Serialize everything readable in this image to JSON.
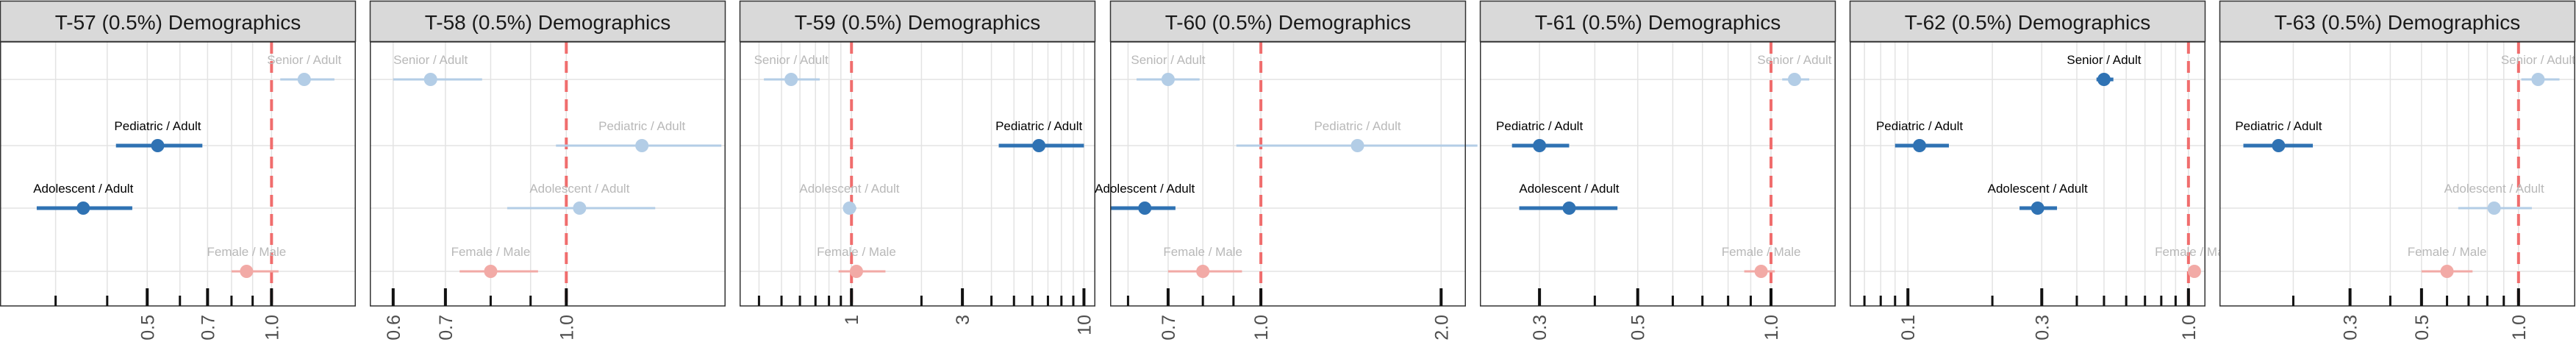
{
  "chart_data": [
    {
      "type": "scatter",
      "title": "T-57 (0.5%) Demographics",
      "x_scale": "log",
      "xlim": [
        0.22,
        1.6
      ],
      "x_ticks": [
        0.3,
        0.4,
        0.5,
        0.6,
        0.7,
        0.8,
        0.9,
        1.0
      ],
      "x_tick_labels": [
        "0.5",
        "0.7",
        "1.0"
      ],
      "reference_line": 1.0,
      "points": [
        {
          "label": "Senior / Adult",
          "value": 1.2,
          "ci": [
            1.05,
            1.42
          ],
          "significant": false,
          "group": "age"
        },
        {
          "label": "Pediatric / Adult",
          "value": 0.53,
          "ci": [
            0.42,
            0.68
          ],
          "significant": true,
          "group": "age"
        },
        {
          "label": "Adolescent / Adult",
          "value": 0.35,
          "ci": [
            0.27,
            0.46
          ],
          "significant": true,
          "group": "age"
        },
        {
          "label": "Female / Male",
          "value": 0.87,
          "ci": [
            0.8,
            1.04
          ],
          "significant": false,
          "group": "sex"
        }
      ]
    },
    {
      "type": "scatter",
      "title": "T-58 (0.5%) Demographics",
      "x_scale": "log",
      "xlim": [
        0.56,
        1.6
      ],
      "x_ticks": [
        0.6,
        0.7,
        0.8,
        0.9,
        1.0
      ],
      "x_tick_labels": [
        "0.6",
        "0.7",
        "1.0"
      ],
      "reference_line": 1.0,
      "points": [
        {
          "label": "Senior / Adult",
          "value": 0.67,
          "ci": [
            0.6,
            0.78
          ],
          "significant": false,
          "group": "age"
        },
        {
          "label": "Pediatric / Adult",
          "value": 1.25,
          "ci": [
            0.97,
            1.58
          ],
          "significant": false,
          "group": "age"
        },
        {
          "label": "Adolescent / Adult",
          "value": 1.04,
          "ci": [
            0.84,
            1.3
          ],
          "significant": false,
          "group": "age"
        },
        {
          "label": "Female / Male",
          "value": 0.8,
          "ci": [
            0.73,
            0.92
          ],
          "significant": false,
          "group": "sex"
        }
      ]
    },
    {
      "type": "scatter",
      "title": "T-59 (0.5%) Demographics",
      "x_scale": "log",
      "xlim": [
        0.33,
        11.2
      ],
      "x_ticks": [
        0.4,
        0.5,
        0.6,
        0.7,
        0.8,
        0.9,
        1,
        2,
        3,
        4,
        5,
        6,
        7,
        8,
        9,
        10
      ],
      "x_tick_labels": [
        "1",
        "3",
        "10"
      ],
      "reference_line": 1.0,
      "points": [
        {
          "label": "Senior / Adult",
          "value": 0.55,
          "ci": [
            0.42,
            0.73
          ],
          "significant": false,
          "group": "age"
        },
        {
          "label": "Pediatric / Adult",
          "value": 6.4,
          "ci": [
            4.3,
            10.0
          ],
          "significant": true,
          "group": "age"
        },
        {
          "label": "Adolescent / Adult",
          "value": 0.98,
          "ci": [
            0.92,
            1.05
          ],
          "significant": false,
          "group": "age"
        },
        {
          "label": "Female / Male",
          "value": 1.05,
          "ci": [
            0.88,
            1.4
          ],
          "significant": false,
          "group": "sex"
        }
      ]
    },
    {
      "type": "scatter",
      "title": "T-60 (0.5%) Demographics",
      "x_scale": "log",
      "xlim": [
        0.56,
        2.2
      ],
      "x_ticks": [
        0.6,
        0.7,
        0.8,
        0.9,
        1.0,
        2.0
      ],
      "x_tick_labels": [
        "0.7",
        "1.0",
        "2.0"
      ],
      "reference_line": 1.0,
      "points": [
        {
          "label": "Senior / Adult",
          "value": 0.7,
          "ci": [
            0.62,
            0.79
          ],
          "significant": false,
          "group": "age"
        },
        {
          "label": "Pediatric / Adult",
          "value": 1.45,
          "ci": [
            0.91,
            2.3
          ],
          "significant": false,
          "group": "age"
        },
        {
          "label": "Adolescent / Adult",
          "value": 0.64,
          "ci": [
            0.56,
            0.72
          ],
          "significant": true,
          "group": "age"
        },
        {
          "label": "Female / Male",
          "value": 0.8,
          "ci": [
            0.7,
            0.93
          ],
          "significant": false,
          "group": "sex"
        }
      ]
    },
    {
      "type": "scatter",
      "title": "T-61 (0.5%) Demographics",
      "x_scale": "log",
      "xlim": [
        0.22,
        1.4
      ],
      "x_ticks": [
        0.3,
        0.4,
        0.5,
        0.6,
        0.7,
        0.8,
        0.9,
        1.0
      ],
      "x_tick_labels": [
        "0.3",
        "0.5",
        "1.0"
      ],
      "reference_line": 1.0,
      "points": [
        {
          "label": "Senior / Adult",
          "value": 1.13,
          "ci": [
            1.06,
            1.22
          ],
          "significant": false,
          "group": "age"
        },
        {
          "label": "Pediatric / Adult",
          "value": 0.3,
          "ci": [
            0.26,
            0.35
          ],
          "significant": true,
          "group": "age"
        },
        {
          "label": "Adolescent / Adult",
          "value": 0.35,
          "ci": [
            0.27,
            0.45
          ],
          "significant": true,
          "group": "age"
        },
        {
          "label": "Female / Male",
          "value": 0.95,
          "ci": [
            0.87,
            1.02
          ],
          "significant": false,
          "group": "sex"
        }
      ]
    },
    {
      "type": "scatter",
      "title": "T-62 (0.5%) Demographics",
      "x_scale": "log",
      "xlim": [
        0.062,
        1.15
      ],
      "x_ticks": [
        0.07,
        0.08,
        0.09,
        0.1,
        0.2,
        0.3,
        0.4,
        0.5,
        0.6,
        0.7,
        0.8,
        0.9,
        1.0
      ],
      "x_tick_labels": [
        "0.1",
        "0.3",
        "1.0"
      ],
      "reference_line": 1.0,
      "points": [
        {
          "label": "Senior / Adult",
          "value": 0.5,
          "ci": [
            0.47,
            0.54
          ],
          "significant": true,
          "group": "age"
        },
        {
          "label": "Pediatric / Adult",
          "value": 0.11,
          "ci": [
            0.09,
            0.14
          ],
          "significant": true,
          "group": "age"
        },
        {
          "label": "Adolescent / Adult",
          "value": 0.29,
          "ci": [
            0.25,
            0.34
          ],
          "significant": true,
          "group": "age"
        },
        {
          "label": "Female / Male",
          "value": 1.05,
          "ci": [
            1.0,
            1.1
          ],
          "significant": false,
          "group": "sex"
        }
      ]
    },
    {
      "type": "scatter",
      "title": "T-63 (0.5%) Demographics",
      "x_scale": "log",
      "xlim": [
        0.118,
        1.5
      ],
      "x_ticks": [
        0.2,
        0.3,
        0.4,
        0.5,
        0.6,
        0.7,
        0.8,
        0.9,
        1.0
      ],
      "x_tick_labels": [
        "0.3",
        "0.5",
        "1.0"
      ],
      "reference_line": 1.0,
      "points": [
        {
          "label": "Senior / Adult",
          "value": 1.15,
          "ci": [
            1.02,
            1.34
          ],
          "significant": false,
          "group": "age"
        },
        {
          "label": "Pediatric / Adult",
          "value": 0.18,
          "ci": [
            0.14,
            0.23
          ],
          "significant": true,
          "group": "age"
        },
        {
          "label": "Adolescent / Adult",
          "value": 0.84,
          "ci": [
            0.65,
            1.1
          ],
          "significant": false,
          "group": "age"
        },
        {
          "label": "Female / Male",
          "value": 0.6,
          "ci": [
            0.5,
            0.72
          ],
          "significant": false,
          "group": "sex"
        }
      ]
    }
  ],
  "colors": {
    "age_significant": "#2f72b3",
    "age_nonsignificant": "#b3cde6",
    "sex_significant": "#e8746e",
    "sex_nonsignificant": "#f2aaa6",
    "reference_line": "#f06d6d",
    "grid": "#e3e3e3",
    "strip_fill": "#d9d9d9",
    "label_significant": "#000000",
    "label_nonsignificant": "#b8b8b8"
  }
}
